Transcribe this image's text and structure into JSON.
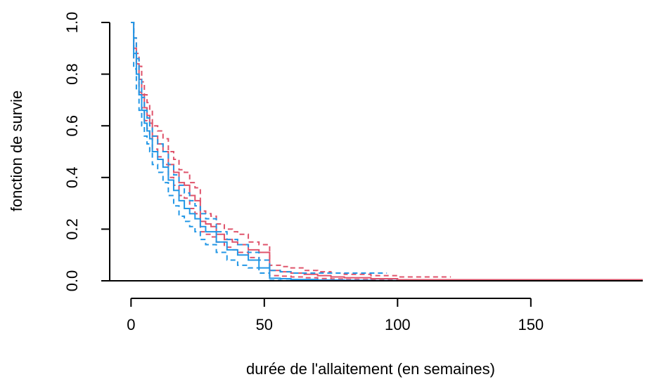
{
  "chart_data": {
    "type": "line",
    "xlabel": "durée de l'allaitement (en semaines)",
    "ylabel": "fonction de survie",
    "xlim": [
      -8,
      192
    ],
    "ylim": [
      0,
      1
    ],
    "x_ticks": [
      0,
      50,
      100,
      150
    ],
    "x_tick_labels": [
      "0",
      "50",
      "100",
      "150"
    ],
    "y_ticks": [
      0,
      0.2,
      0.4,
      0.6,
      0.8,
      1.0
    ],
    "y_tick_labels": [
      "0.0",
      "0.2",
      "0.4",
      "0.6",
      "0.8",
      "1.0"
    ],
    "grid": false,
    "colors": {
      "red": "#DF536B",
      "blue": "#2297E6"
    },
    "series": [
      {
        "color": "red",
        "style": "solid",
        "x": [
          0,
          1,
          2,
          3,
          4,
          5,
          6,
          7,
          8,
          10,
          12,
          14,
          16,
          18,
          20,
          22,
          24,
          26,
          28,
          30,
          32,
          35,
          38,
          40,
          44,
          48,
          52,
          56,
          60,
          65,
          70,
          75,
          80,
          90,
          100,
          192
        ],
        "y": [
          1.0,
          0.9,
          0.84,
          0.78,
          0.72,
          0.67,
          0.64,
          0.61,
          0.56,
          0.53,
          0.5,
          0.45,
          0.42,
          0.38,
          0.37,
          0.33,
          0.31,
          0.23,
          0.22,
          0.21,
          0.18,
          0.16,
          0.15,
          0.14,
          0.12,
          0.11,
          0.04,
          0.035,
          0.03,
          0.025,
          0.02,
          0.015,
          0.012,
          0.008,
          0.004,
          0.004
        ]
      },
      {
        "color": "red",
        "style": "dashed",
        "x": [
          0,
          1,
          2,
          3,
          4,
          5,
          6,
          7,
          8,
          10,
          12,
          14,
          16,
          18,
          20,
          22,
          24,
          26,
          28,
          30,
          32,
          35,
          38,
          40,
          44,
          48,
          52,
          56,
          60,
          65,
          70,
          75,
          80,
          90,
          100,
          120
        ],
        "y": [
          1.0,
          0.94,
          0.88,
          0.83,
          0.77,
          0.72,
          0.69,
          0.66,
          0.6,
          0.58,
          0.55,
          0.5,
          0.47,
          0.43,
          0.42,
          0.38,
          0.36,
          0.27,
          0.26,
          0.25,
          0.22,
          0.2,
          0.19,
          0.18,
          0.15,
          0.14,
          0.06,
          0.055,
          0.05,
          0.04,
          0.035,
          0.03,
          0.025,
          0.02,
          0.015,
          0.015
        ]
      },
      {
        "color": "red",
        "style": "dashed",
        "x": [
          0,
          1,
          2,
          3,
          4,
          5,
          6,
          7,
          8,
          10,
          12,
          14,
          16,
          18,
          20,
          22,
          24,
          26,
          28,
          30,
          32,
          35,
          38,
          40,
          44,
          48,
          52,
          56,
          60,
          65,
          70,
          75,
          80,
          90,
          100,
          120
        ],
        "y": [
          1.0,
          0.86,
          0.8,
          0.73,
          0.67,
          0.62,
          0.59,
          0.56,
          0.51,
          0.48,
          0.45,
          0.4,
          0.37,
          0.33,
          0.32,
          0.28,
          0.26,
          0.19,
          0.18,
          0.17,
          0.15,
          0.13,
          0.12,
          0.11,
          0.09,
          0.08,
          0.02,
          0.018,
          0.015,
          0.012,
          0.009,
          0.007,
          0.005,
          0.003,
          0.001,
          0.001
        ]
      },
      {
        "color": "blue",
        "style": "solid",
        "x": [
          0,
          1,
          2,
          3,
          4,
          5,
          6,
          7,
          8,
          10,
          12,
          14,
          16,
          18,
          20,
          22,
          24,
          26,
          28,
          32,
          36,
          40,
          44,
          48,
          52,
          56,
          60,
          70,
          80,
          90,
          100
        ],
        "y": [
          1.0,
          0.88,
          0.8,
          0.72,
          0.66,
          0.61,
          0.58,
          0.55,
          0.5,
          0.47,
          0.44,
          0.39,
          0.35,
          0.31,
          0.28,
          0.26,
          0.24,
          0.21,
          0.19,
          0.15,
          0.12,
          0.1,
          0.08,
          0.05,
          0.01,
          0.008,
          0.005,
          0.003,
          0.002,
          0.001,
          0.001
        ]
      },
      {
        "color": "blue",
        "style": "dashed",
        "x": [
          0,
          1,
          2,
          3,
          4,
          5,
          6,
          7,
          8,
          10,
          12,
          14,
          16,
          18,
          20,
          22,
          24,
          26,
          28,
          32,
          36,
          40,
          44,
          48,
          52,
          56,
          60,
          70,
          80,
          90,
          96
        ],
        "y": [
          1.0,
          0.94,
          0.86,
          0.78,
          0.71,
          0.66,
          0.63,
          0.6,
          0.56,
          0.53,
          0.5,
          0.45,
          0.41,
          0.37,
          0.34,
          0.31,
          0.29,
          0.26,
          0.24,
          0.19,
          0.16,
          0.14,
          0.11,
          0.08,
          0.04,
          0.035,
          0.03,
          0.03,
          0.03,
          0.03,
          0.03
        ]
      },
      {
        "color": "blue",
        "style": "dashed",
        "x": [
          0,
          1,
          2,
          3,
          4,
          5,
          6,
          7,
          8,
          10,
          12,
          14,
          16,
          18,
          20,
          22,
          24,
          26,
          28,
          32,
          36,
          40,
          44,
          48,
          52,
          56,
          60,
          70,
          80,
          90,
          96
        ],
        "y": [
          1.0,
          0.82,
          0.74,
          0.66,
          0.6,
          0.56,
          0.53,
          0.5,
          0.45,
          0.42,
          0.38,
          0.33,
          0.29,
          0.25,
          0.23,
          0.21,
          0.19,
          0.16,
          0.14,
          0.11,
          0.08,
          0.06,
          0.05,
          0.03,
          0.002,
          0.001,
          0.001,
          0.0,
          0.0,
          0.0,
          0.0
        ]
      }
    ]
  }
}
